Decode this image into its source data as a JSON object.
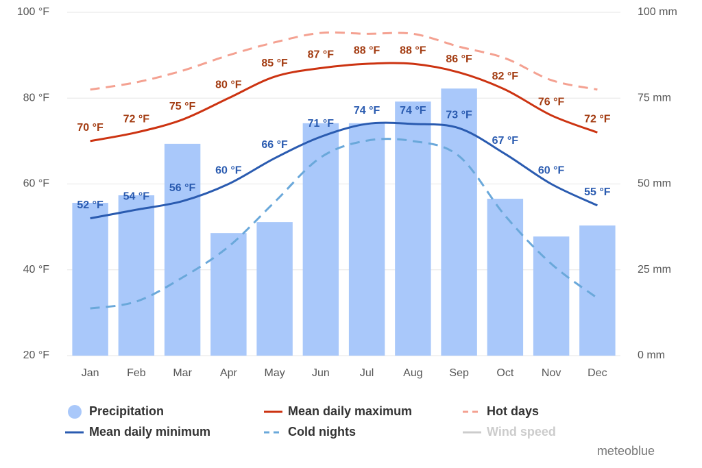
{
  "chart_data": {
    "type": "combo",
    "categories": [
      "Jan",
      "Feb",
      "Mar",
      "Apr",
      "May",
      "Jun",
      "Jul",
      "Aug",
      "Sep",
      "Oct",
      "Nov",
      "Dec"
    ],
    "ylim": [
      20,
      100
    ],
    "yticks": [
      {
        "value": 20,
        "label": "20 °F"
      },
      {
        "value": 40,
        "label": "40 °F"
      },
      {
        "value": 60,
        "label": "60 °F"
      },
      {
        "value": 80,
        "label": "80 °F"
      },
      {
        "value": 100,
        "label": "100 °F"
      }
    ],
    "y2lim": [
      0,
      100
    ],
    "y2ticks": [
      {
        "value": 0,
        "label": "0 mm"
      },
      {
        "value": 25,
        "label": "25 mm"
      },
      {
        "value": 50,
        "label": "50 mm"
      },
      {
        "value": 75,
        "label": "75 mm"
      },
      {
        "value": 100,
        "label": "100 mm"
      }
    ],
    "grid": true,
    "series": [
      {
        "name": "Precipitation",
        "type": "bar",
        "axis": "y2",
        "color": "#a9c8fa",
        "values": [
          44.5,
          46.7,
          61.7,
          35.7,
          38.9,
          67.7,
          67.7,
          74,
          77.8,
          45.7,
          34.7,
          37.9
        ]
      },
      {
        "name": "Mean daily maximum",
        "type": "line",
        "color": "#cc3311",
        "label_color": "#a33c12",
        "values": [
          70,
          72,
          75,
          80,
          85,
          87,
          88,
          88,
          86,
          82,
          76,
          72
        ],
        "value_labels": [
          "70 °F",
          "72 °F",
          "75 °F",
          "80 °F",
          "85 °F",
          "87 °F",
          "88 °F",
          "88 °F",
          "86 °F",
          "82 °F",
          "76 °F",
          "72 °F"
        ]
      },
      {
        "name": "Hot days",
        "type": "line",
        "dashed": true,
        "color": "#f4a191",
        "values": [
          82,
          83.7,
          86.4,
          90,
          93,
          95.2,
          95,
          95,
          92,
          89.3,
          84.2,
          82
        ]
      },
      {
        "name": "Mean daily minimum",
        "type": "line",
        "color": "#2a5bb0",
        "label_color": "#2a5bb0",
        "values": [
          52,
          54,
          56,
          60,
          66,
          71,
          74,
          74,
          73,
          67,
          60,
          55
        ],
        "value_labels": [
          "52 °F",
          "54 °F",
          "56 °F",
          "60 °F",
          "66 °F",
          "71 °F",
          "74 °F",
          "74 °F",
          "73 °F",
          "67 °F",
          "60 °F",
          "55 °F"
        ]
      },
      {
        "name": "Cold nights",
        "type": "line",
        "dashed": true,
        "color": "#6aa8da",
        "values": [
          31,
          32.6,
          38.2,
          45.4,
          55.8,
          66.2,
          70.1,
          70,
          66.5,
          52.6,
          41.4,
          33.4
        ]
      }
    ],
    "legend_inactive": [
      {
        "name": "Wind speed",
        "color": "#cccccc"
      }
    ],
    "credit": "meteoblue"
  }
}
